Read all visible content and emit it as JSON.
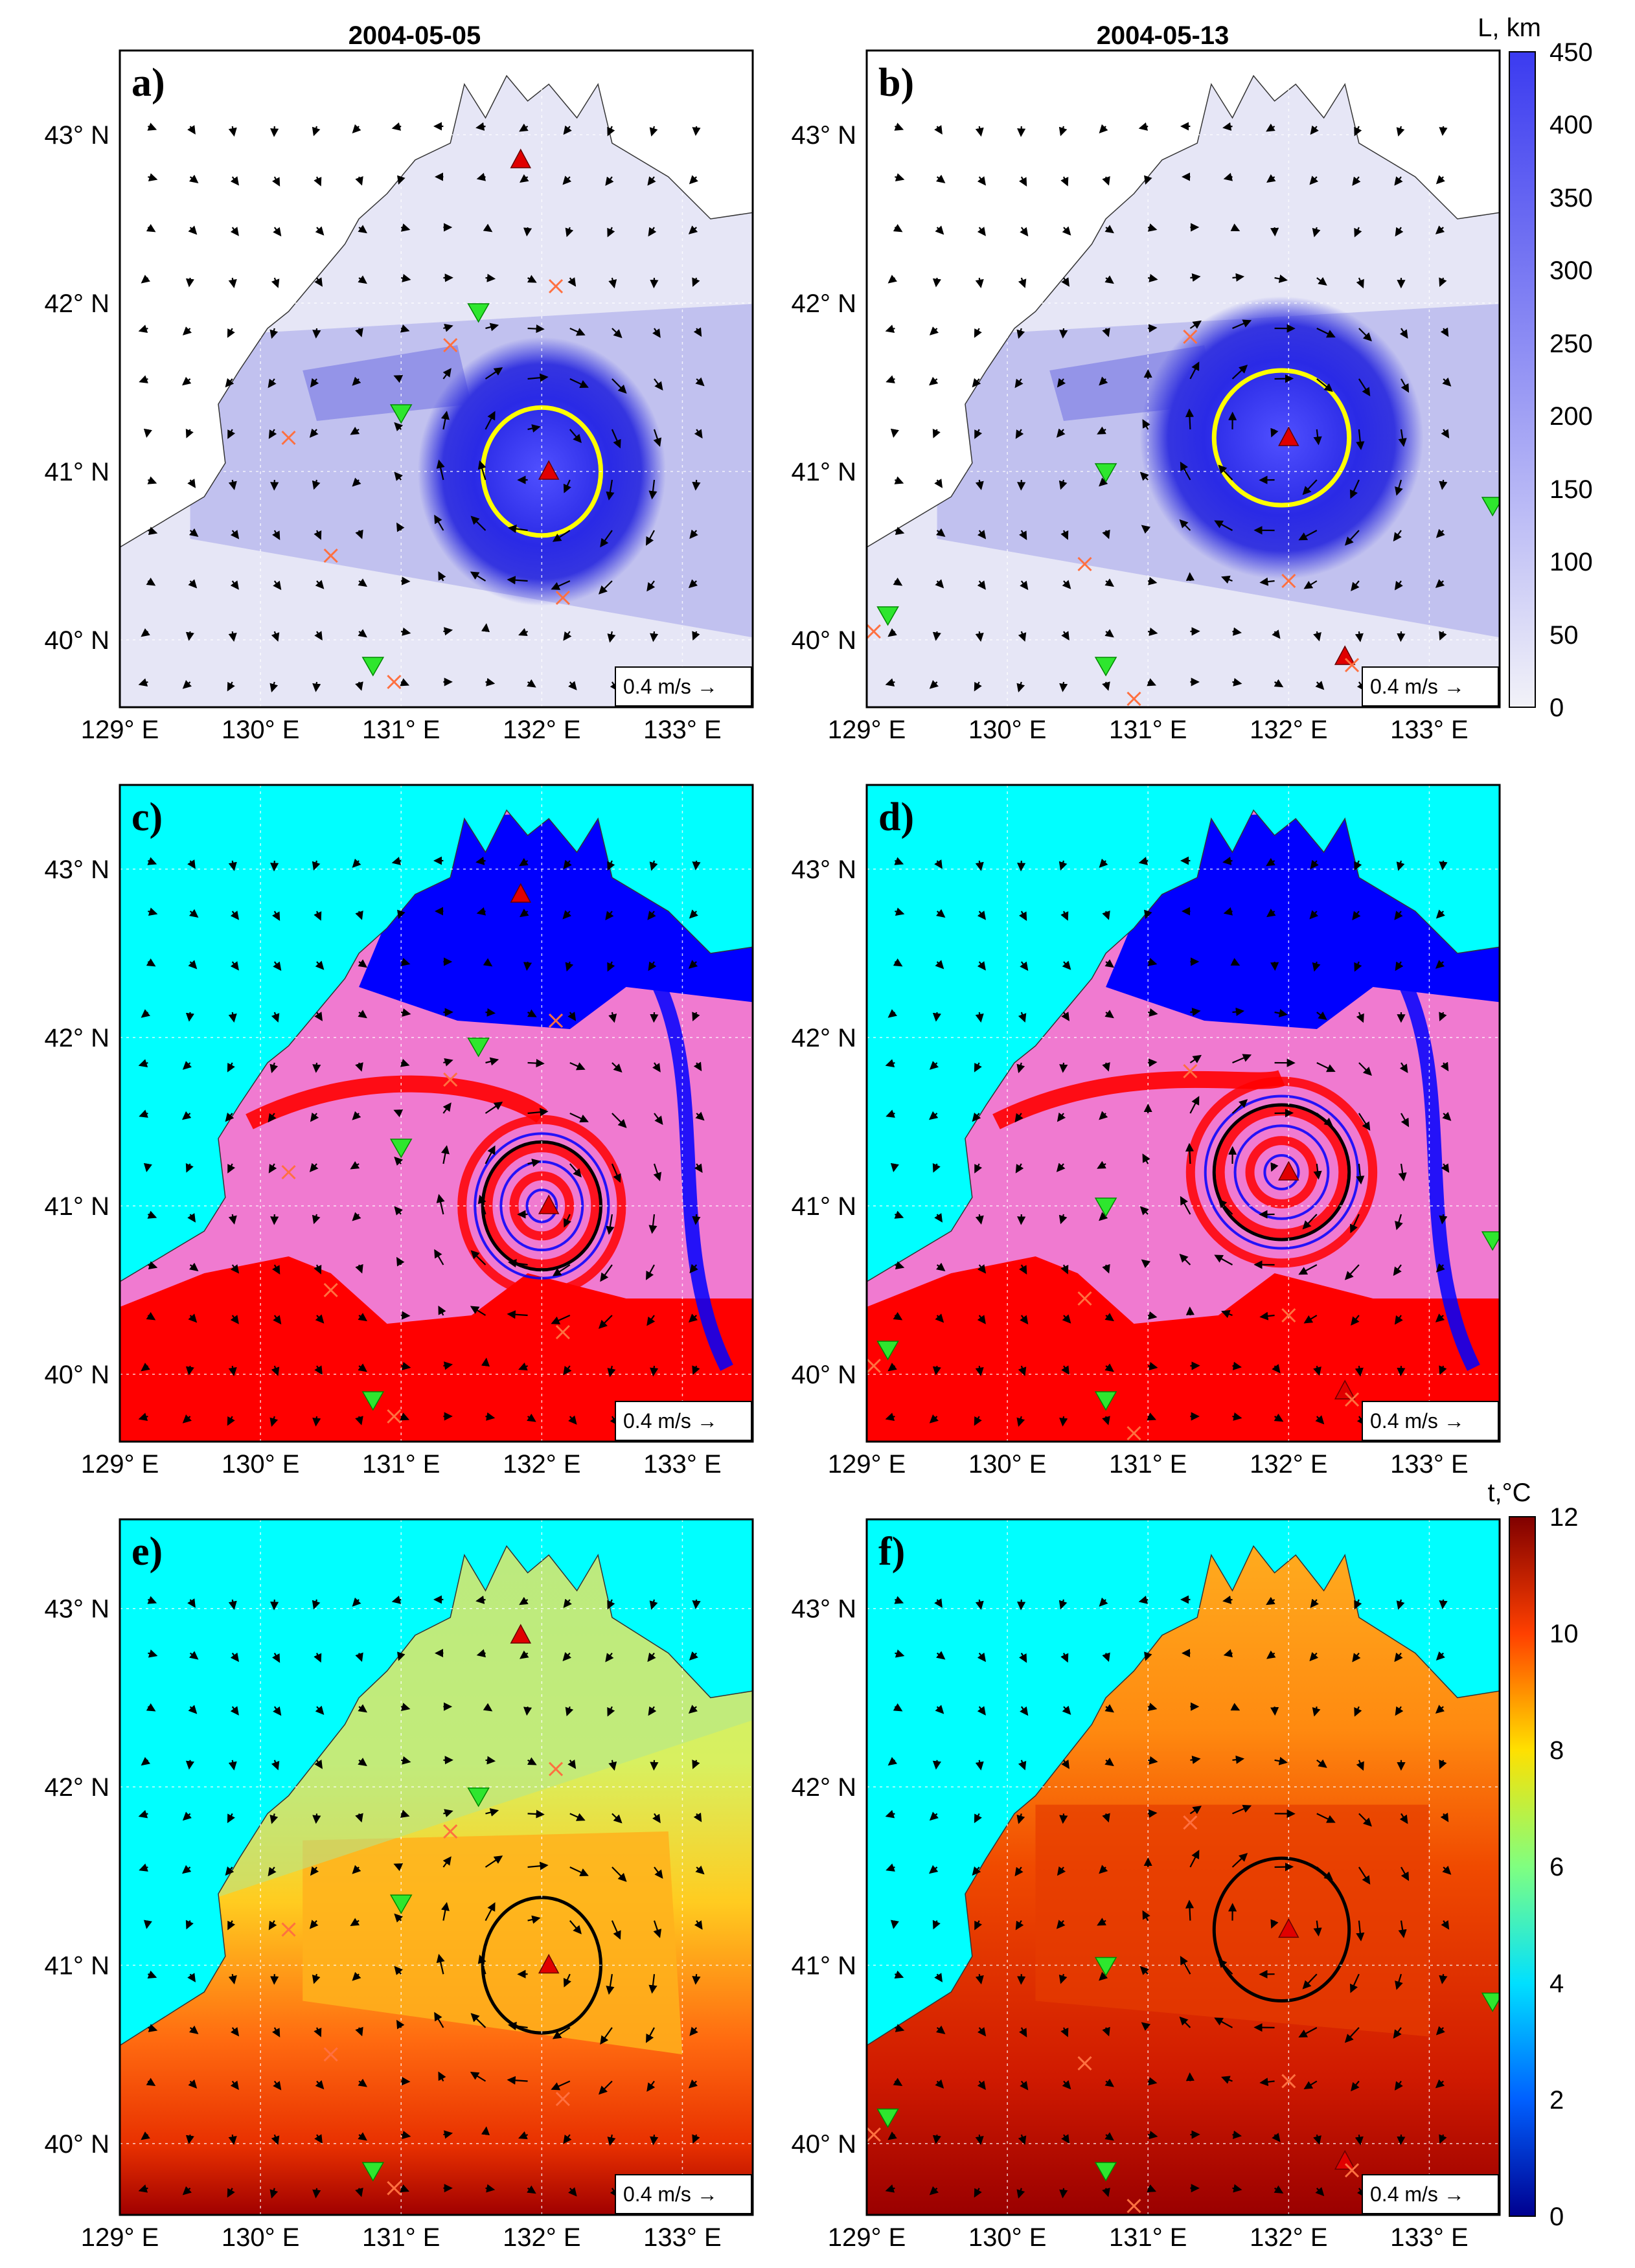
{
  "figure": {
    "column_dates": [
      "2004-05-05",
      "2004-05-13"
    ],
    "lat_ticks": [
      "43° N",
      "42° N",
      "41° N",
      "40° N"
    ],
    "lon_ticks": [
      "129° E",
      "130° E",
      "131° E",
      "132° E",
      "133° E"
    ],
    "vector_scale_label": "0.4 m/s →",
    "extent": {
      "lon": [
        129,
        133.5
      ],
      "lat": [
        39.6,
        43.5
      ]
    }
  },
  "panels": [
    {
      "id": "a",
      "label": "a)",
      "field": "L",
      "date": "2004-05-05"
    },
    {
      "id": "b",
      "label": "b)",
      "field": "L",
      "date": "2004-05-13"
    },
    {
      "id": "c",
      "label": "c)",
      "field": "origin",
      "date": "2004-05-05"
    },
    {
      "id": "d",
      "label": "d)",
      "field": "origin",
      "date": "2004-05-13"
    },
    {
      "id": "e",
      "label": "e)",
      "field": "t",
      "date": "2004-05-05"
    },
    {
      "id": "f",
      "label": "f)",
      "field": "t",
      "date": "2004-05-13"
    }
  ],
  "colorbars": {
    "L": {
      "title": "L, km",
      "ticks": [
        "450",
        "400",
        "350",
        "300",
        "250",
        "200",
        "150",
        "100",
        "50",
        "0"
      ],
      "range": [
        0,
        450
      ],
      "colors": [
        "#f2f2f8",
        "#3b3bf0"
      ]
    },
    "t": {
      "title": "t,°C",
      "ticks": [
        "12",
        "10",
        "8",
        "6",
        "4",
        "2",
        "0"
      ],
      "range": [
        0,
        12
      ],
      "colors": [
        "#00008f",
        "#0060ff",
        "#00e0ff",
        "#80ff80",
        "#ffe000",
        "#ff4000",
        "#800000"
      ]
    }
  },
  "map_colors": {
    "sea_background": "#00ffff",
    "land": "#ffffff",
    "origin_blue": "#0000ff",
    "origin_pink": "#f07ad0",
    "origin_red": "#ff0000",
    "eddy_contour_L": "#ffff00",
    "eddy_contour_other": "#000000",
    "marker_red": "#e00000",
    "marker_green": "#2ee62e",
    "marker_cross": "#ff7040"
  },
  "markers": {
    "may05": {
      "red_triangles": [
        [
          131.85,
          42.85
        ],
        [
          132.05,
          41.0
        ]
      ],
      "green_triangles": [
        [
          131.55,
          41.95
        ],
        [
          131.0,
          41.35
        ],
        [
          130.8,
          39.85
        ]
      ],
      "crosses": [
        [
          132.1,
          42.1
        ],
        [
          131.35,
          41.75
        ],
        [
          130.2,
          41.2
        ],
        [
          130.5,
          40.5
        ],
        [
          132.15,
          40.25
        ],
        [
          130.95,
          39.75
        ]
      ]
    },
    "may13": {
      "red_triangles": [
        [
          132.0,
          41.2
        ],
        [
          132.4,
          39.9
        ]
      ],
      "green_triangles": [
        [
          129.15,
          40.15
        ],
        [
          130.7,
          41.0
        ],
        [
          130.7,
          39.85
        ],
        [
          133.45,
          40.8
        ]
      ],
      "crosses": [
        [
          131.3,
          41.8
        ],
        [
          130.55,
          40.45
        ],
        [
          130.9,
          39.65
        ],
        [
          132.0,
          40.35
        ],
        [
          132.45,
          39.85
        ],
        [
          129.05,
          40.05
        ]
      ]
    }
  },
  "eddy": {
    "may05": {
      "center": [
        132.0,
        41.0
      ],
      "radius_lon": 0.42,
      "radius_lat": 0.38
    },
    "may13": {
      "center": [
        131.95,
        41.2
      ],
      "radius_lon": 0.48,
      "radius_lat": 0.4
    }
  }
}
